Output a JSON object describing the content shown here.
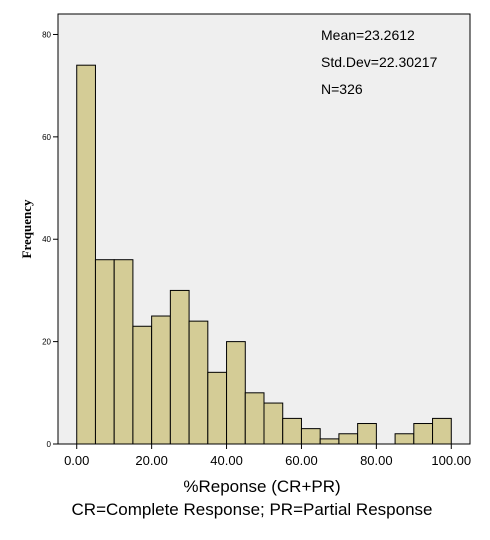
{
  "chart_data": {
    "type": "bar",
    "subtype": "histogram",
    "bin_width": 5,
    "bins": [
      {
        "start": 0,
        "end": 5,
        "count": 74
      },
      {
        "start": 5,
        "end": 10,
        "count": 36
      },
      {
        "start": 10,
        "end": 15,
        "count": 36
      },
      {
        "start": 15,
        "end": 20,
        "count": 23
      },
      {
        "start": 20,
        "end": 25,
        "count": 25
      },
      {
        "start": 25,
        "end": 30,
        "count": 30
      },
      {
        "start": 30,
        "end": 35,
        "count": 24
      },
      {
        "start": 35,
        "end": 40,
        "count": 14
      },
      {
        "start": 40,
        "end": 45,
        "count": 20
      },
      {
        "start": 45,
        "end": 50,
        "count": 10
      },
      {
        "start": 50,
        "end": 55,
        "count": 8
      },
      {
        "start": 55,
        "end": 60,
        "count": 5
      },
      {
        "start": 60,
        "end": 65,
        "count": 3
      },
      {
        "start": 65,
        "end": 70,
        "count": 1
      },
      {
        "start": 70,
        "end": 75,
        "count": 2
      },
      {
        "start": 75,
        "end": 80,
        "count": 4
      },
      {
        "start": 80,
        "end": 85,
        "count": 0
      },
      {
        "start": 85,
        "end": 90,
        "count": 2
      },
      {
        "start": 90,
        "end": 95,
        "count": 4
      },
      {
        "start": 95,
        "end": 100,
        "count": 5
      }
    ],
    "xlabel": "%Reponse (CR+PR)",
    "ylabel": "Frequency",
    "caption": "CR=Complete Response; PR=Partial Response",
    "xticks": [
      "0.00",
      "20.00",
      "40.00",
      "60.00",
      "80.00",
      "100.00"
    ],
    "xtick_values": [
      0,
      20,
      40,
      60,
      80,
      100
    ],
    "yticks": [
      "0",
      "20",
      "40",
      "60",
      "80"
    ],
    "ytick_values": [
      0,
      20,
      40,
      60,
      80
    ],
    "xlim": [
      -5,
      105
    ],
    "ylim": [
      0,
      84
    ],
    "stats": {
      "mean": "Mean=23.2612",
      "std_dev": "Std.Dev=22.30217",
      "n": "N=326"
    },
    "grid": false,
    "colors": {
      "bar_fill": "#d4cc96",
      "bar_stroke": "#000000",
      "plot_background": "#efefef"
    }
  }
}
